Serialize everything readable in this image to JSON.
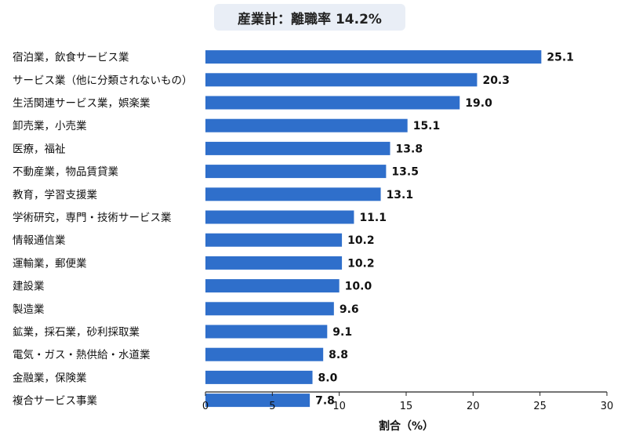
{
  "chart_data": {
    "type": "bar",
    "orientation": "horizontal",
    "title": "産業計：離職率 14.2%",
    "xlabel": "割合（%）",
    "ylabel": "",
    "xlim": [
      0,
      30
    ],
    "xticks": [
      0,
      5,
      10,
      15,
      20,
      25,
      30
    ],
    "grid": false,
    "bar_color": "#2f6fcb",
    "categories": [
      "宿泊業，飲食サービス業",
      "サービス業（他に分類されないもの）",
      "生活関連サービス業，娯楽業",
      "卸売業，小売業",
      "医療，福祉",
      "不動産業，物品賃貸業",
      "教育，学習支援業",
      "学術研究，専門・技術サービス業",
      "情報通信業",
      "運輸業，郵便業",
      "建設業",
      "製造業",
      "鉱業，採石業，砂利採取業",
      "電気・ガス・熱供給・水道業",
      "金融業，保険業",
      "複合サービス事業"
    ],
    "values": [
      25.1,
      20.3,
      19.0,
      15.1,
      13.8,
      13.5,
      13.1,
      11.1,
      10.2,
      10.2,
      10.0,
      9.6,
      9.1,
      8.8,
      8.0,
      7.8
    ],
    "value_labels": [
      "25.1",
      "20.3",
      "19.0",
      "15.1",
      "13.8",
      "13.5",
      "13.1",
      "11.1",
      "10.2",
      "10.2",
      "10.0",
      "9.6",
      "9.1",
      "8.8",
      "8.0",
      "7.8"
    ]
  }
}
